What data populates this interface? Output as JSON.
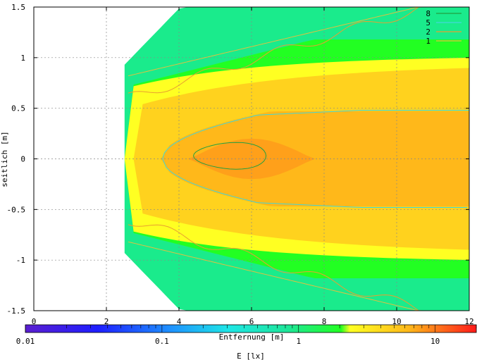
{
  "chart_data": {
    "type": "heatmap",
    "title": "",
    "xlabel": "Entfernung [m]",
    "ylabel": "seitlich [m]",
    "xlim": [
      0,
      12
    ],
    "ylim": [
      -1.5,
      1.5
    ],
    "x_ticks": [
      "0",
      "2",
      "4",
      "6",
      "8",
      "10",
      "12"
    ],
    "y_ticks": [
      "1.5",
      "1",
      "0.5",
      "0",
      "-0.5",
      "-1",
      "-1.5"
    ],
    "grid": true,
    "contour_levels": [
      {
        "name": "8",
        "color": "#22a040"
      },
      {
        "name": "5",
        "color": "#40d8d8"
      },
      {
        "name": "2",
        "color": "#e8a030"
      },
      {
        "name": "1",
        "color": "#e0c040"
      }
    ],
    "legend_placement": "top-right",
    "colorbar": {
      "label": "E [lx]",
      "scale": "log",
      "range": [
        0.01,
        20
      ],
      "tick_labels": [
        "0.01",
        "0.1",
        "1",
        "10"
      ]
    },
    "regions_lx": [
      {
        "level": "below 1",
        "color": "#1aeb8c"
      },
      {
        "level": "1-2",
        "color": "#22ff22"
      },
      {
        "level": "2-4",
        "color": "#ffff22"
      },
      {
        "level": "4-7",
        "color": "#ffd21e"
      },
      {
        "level": "7-10",
        "color": "#ffb81a"
      },
      {
        "level": "above 10",
        "color": "#ffa01a"
      }
    ]
  }
}
